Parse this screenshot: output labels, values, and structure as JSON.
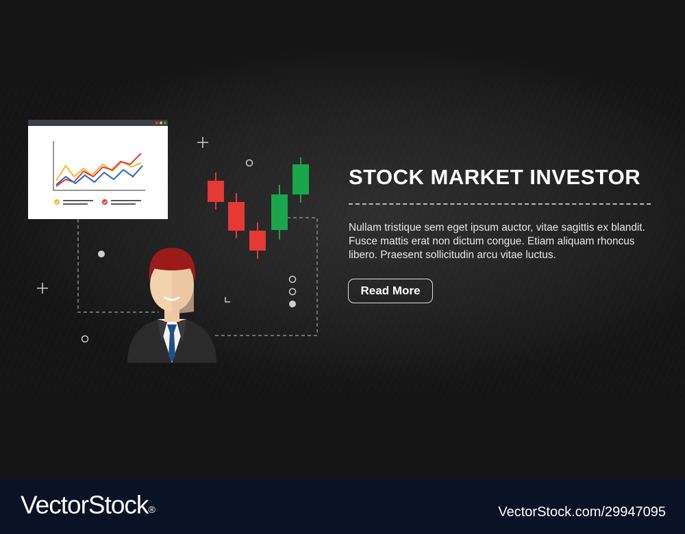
{
  "banner": {
    "title": "STOCK MARKET INVESTOR",
    "description": "Nullam tristique sem eget ipsum auctor, vitae sagittis ex blandit. Fusce mattis erat non dictum congue. Etiam aliquam rhoncus libero. Praesent sollicitudin arcu vitae luctus.",
    "button_label": "Read More",
    "colors": {
      "background": "#151515",
      "candle_bear": "#e53935",
      "candle_bull": "#1aa64a",
      "chart_line_red": "#e53935",
      "chart_line_yellow": "#f5b82e",
      "chart_line_blue": "#2a66b8",
      "hair": "#9b1a1a"
    },
    "icons": [
      "browser-chart-icon",
      "candlestick-chart-icon",
      "businessman-avatar-icon",
      "plus-decoration-icon",
      "circle-decoration-icon"
    ]
  },
  "footer": {
    "logo_text": "VectorStock",
    "logo_mark": "®",
    "image_id": "VectorStock.com/29947095",
    "background": "#0a1226"
  }
}
